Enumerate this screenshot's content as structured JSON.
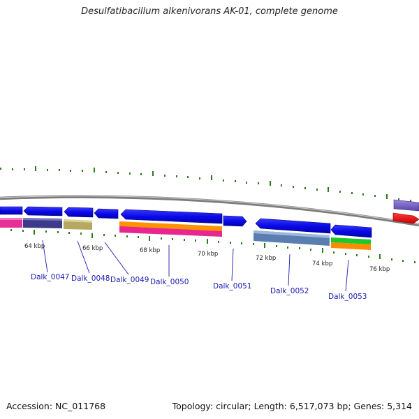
{
  "title": "Desulfatibacillum alkenivorans AK-01, complete genome",
  "footer": {
    "accession": "Accession: NC_011768",
    "summary": "Topology: circular; Length: 6,517,073 bp; Genes: 5,314"
  },
  "colors": {
    "backbone": "#8a8a8a",
    "tick": "#2a7a1a",
    "gene": "#1010e6",
    "label": "#1a1ab0"
  },
  "kbp_labels": [
    "64 kbp",
    "66 kbp",
    "68 kbp",
    "70 kbp",
    "72 kbp",
    "74 kbp",
    "76 kbp"
  ],
  "gene_labels": [
    "Dalk_0047",
    "Dalk_0048",
    "Dalk_0049",
    "Dalk_0050",
    "Dalk_0051",
    "Dalk_0052",
    "Dalk_0053"
  ]
}
